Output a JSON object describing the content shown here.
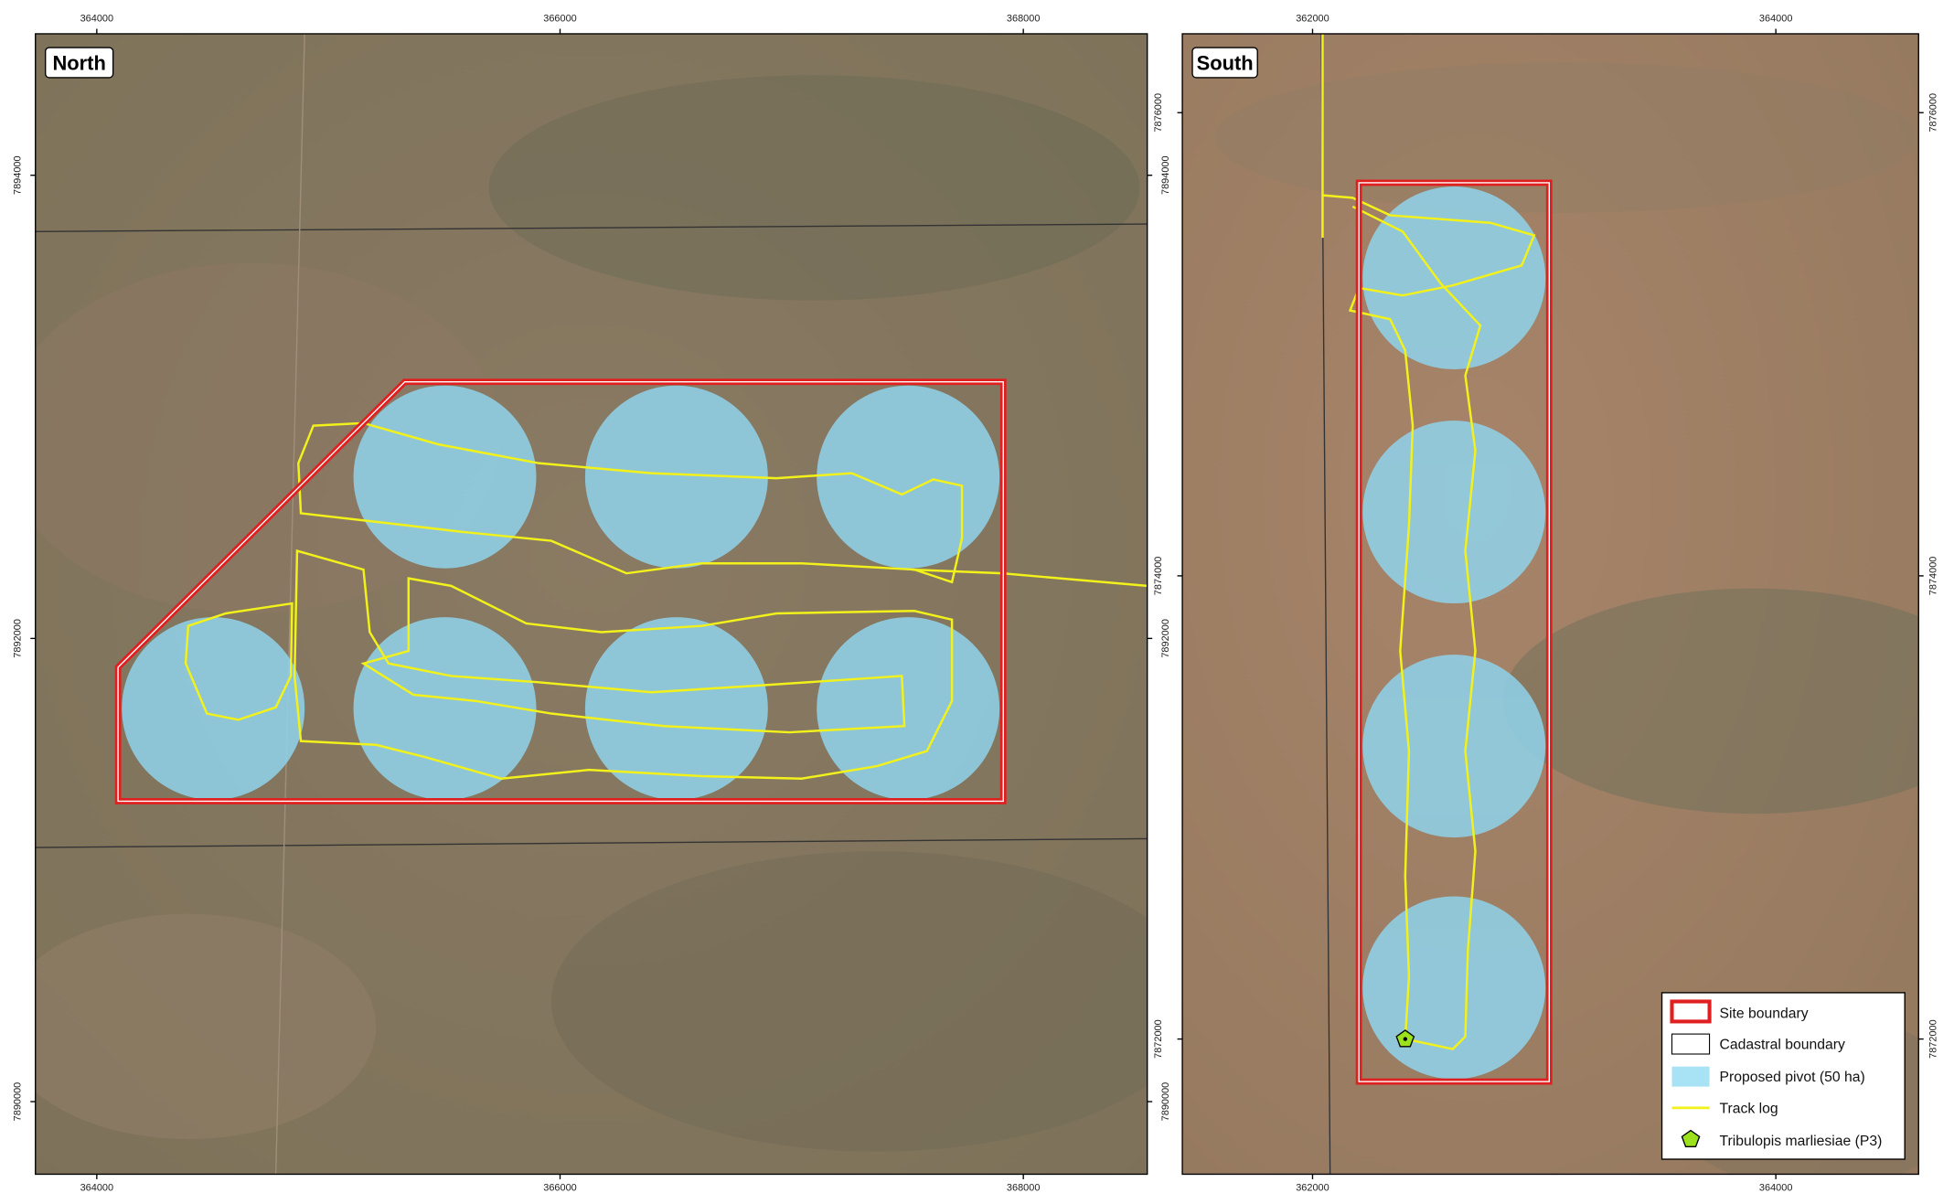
{
  "panels": [
    {
      "label": "North",
      "x_ticks": [
        364000,
        366000,
        368000
      ],
      "y_ticks": [
        7894000,
        7892000,
        7890000
      ]
    },
    {
      "label": "South",
      "x_ticks": [
        362000,
        364000
      ],
      "y_ticks": [
        7876000,
        7874000,
        7872000
      ]
    }
  ],
  "legend": [
    "Site boundary",
    "Cadastral boundary",
    "Proposed pivot (50 ha)",
    "Track log",
    "Tribulopis marliesiae (P3)"
  ]
}
